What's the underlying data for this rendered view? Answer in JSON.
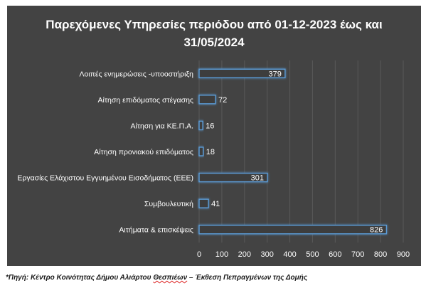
{
  "title_line1": "Παρεχόμενες Υπηρεσίες περιόδου από 01-12-2023 έως και",
  "title_line2": "31/05/2024",
  "source_note": {
    "prefix": "*Πηγή: Κέντρο  Κοινότητας Δήμου Αλιάρτου ",
    "underlined": "Θεσπιέων",
    "suffix": " – Έκθεση Πεπραγμένων της Δομής"
  },
  "colors": {
    "background": "#434343",
    "bar_fill": "#3d3d3d",
    "bar_glow": "#5b9bd5",
    "text": "#ffffff",
    "grid": "#595959"
  },
  "chart_data": {
    "type": "bar",
    "orientation": "horizontal",
    "title": "Παρεχόμενες Υπηρεσίες περιόδου από 01-12-2023 έως και 31/05/2024",
    "categories": [
      "Λοιπές ενημερώσεις -υποοστήριξη",
      "Αίτηση επιδόματος στέγασης",
      "Αίτηση για ΚΕ.Π.Α.",
      "Αίτηση προνιακού επιδόματος",
      "Εργασίες Ελάχιστου Εγγυημένου Εισοδήματος (ΕΕΕ)",
      "Συμβουλευτική",
      "Αιτήματα & επισκέψεις"
    ],
    "values": [
      379,
      72,
      16,
      18,
      301,
      41,
      826
    ],
    "xlim": [
      0,
      900
    ],
    "xticks": [
      0,
      100,
      200,
      300,
      400,
      500,
      600,
      700,
      800,
      900
    ],
    "grid": true,
    "data_labels": true
  }
}
